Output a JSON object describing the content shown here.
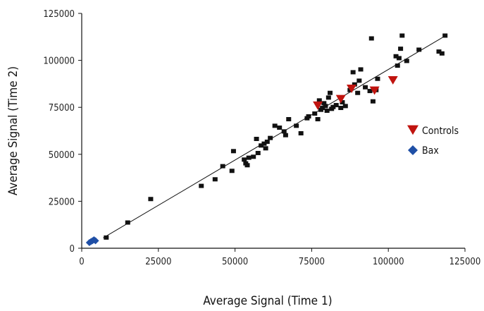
{
  "chart_data": {
    "type": "scatter",
    "title": "",
    "xlabel": "Average Signal (Time 1)",
    "ylabel": "Average Signal (Time 2)",
    "xlim": [
      0,
      125000
    ],
    "ylim": [
      0,
      125000
    ],
    "xticks": [
      0,
      25000,
      50000,
      75000,
      100000,
      125000
    ],
    "yticks": [
      0,
      25000,
      50000,
      75000,
      100000,
      125000
    ],
    "xtick_labels": [
      "0",
      "25000",
      "50000",
      "75000",
      "100000",
      "125000"
    ],
    "ytick_labels": [
      "0",
      "25000",
      "50000",
      "75000",
      "100000",
      "125000"
    ],
    "grid": false,
    "legend_position": "right",
    "trendline": {
      "from": [
        7000,
        5500
      ],
      "to": [
        118000,
        112500
      ]
    },
    "series": [
      {
        "name": "",
        "marker": "square",
        "color": "#111111",
        "points": [
          [
            8000,
            5500
          ],
          [
            15000,
            13500
          ],
          [
            22500,
            26000
          ],
          [
            39000,
            33000
          ],
          [
            43500,
            36500
          ],
          [
            46000,
            43500
          ],
          [
            49000,
            41000
          ],
          [
            49500,
            51500
          ],
          [
            53000,
            47000
          ],
          [
            53500,
            45000
          ],
          [
            54000,
            44000
          ],
          [
            54500,
            48000
          ],
          [
            56000,
            48500
          ],
          [
            57000,
            58000
          ],
          [
            57500,
            50500
          ],
          [
            58500,
            54500
          ],
          [
            59500,
            55500
          ],
          [
            60000,
            53000
          ],
          [
            60500,
            56500
          ],
          [
            61500,
            58500
          ],
          [
            63000,
            65000
          ],
          [
            64500,
            64000
          ],
          [
            66000,
            62000
          ],
          [
            66500,
            60000
          ],
          [
            67500,
            68500
          ],
          [
            70000,
            65000
          ],
          [
            71500,
            61000
          ],
          [
            73500,
            69000
          ],
          [
            74000,
            70000
          ],
          [
            76000,
            71500
          ],
          [
            77500,
            78500
          ],
          [
            77000,
            68500
          ],
          [
            78000,
            73500
          ],
          [
            78500,
            74500
          ],
          [
            79000,
            77000
          ],
          [
            79500,
            75500
          ],
          [
            80000,
            73000
          ],
          [
            80500,
            80000
          ],
          [
            81000,
            82500
          ],
          [
            81500,
            74000
          ],
          [
            82000,
            75000
          ],
          [
            83000,
            76000
          ],
          [
            84500,
            74500
          ],
          [
            85000,
            77500
          ],
          [
            86000,
            75500
          ],
          [
            87500,
            84000
          ],
          [
            88500,
            93500
          ],
          [
            89000,
            87000
          ],
          [
            90000,
            82500
          ],
          [
            90500,
            89000
          ],
          [
            91000,
            95000
          ],
          [
            92500,
            85500
          ],
          [
            94000,
            83500
          ],
          [
            94500,
            111500
          ],
          [
            95000,
            78000
          ],
          [
            96000,
            84000
          ],
          [
            96500,
            90000
          ],
          [
            102500,
            102000
          ],
          [
            103000,
            97000
          ],
          [
            103500,
            101000
          ],
          [
            104000,
            106000
          ],
          [
            104500,
            113000
          ],
          [
            106000,
            99500
          ],
          [
            110000,
            105500
          ],
          [
            116500,
            104500
          ],
          [
            117500,
            103500
          ],
          [
            118500,
            113000
          ]
        ]
      },
      {
        "name": "Controls",
        "marker": "triangle-down",
        "color": "#c0140f",
        "points": [
          [
            77000,
            76000
          ],
          [
            84500,
            79500
          ],
          [
            88000,
            85000
          ],
          [
            95500,
            84000
          ],
          [
            101500,
            89500
          ]
        ]
      },
      {
        "name": "Bax",
        "marker": "diamond",
        "color": "#1f4fa6",
        "points": [
          [
            2500,
            3000
          ],
          [
            3000,
            3500
          ],
          [
            3500,
            4000
          ],
          [
            4000,
            4500
          ],
          [
            4500,
            4000
          ]
        ]
      }
    ]
  }
}
